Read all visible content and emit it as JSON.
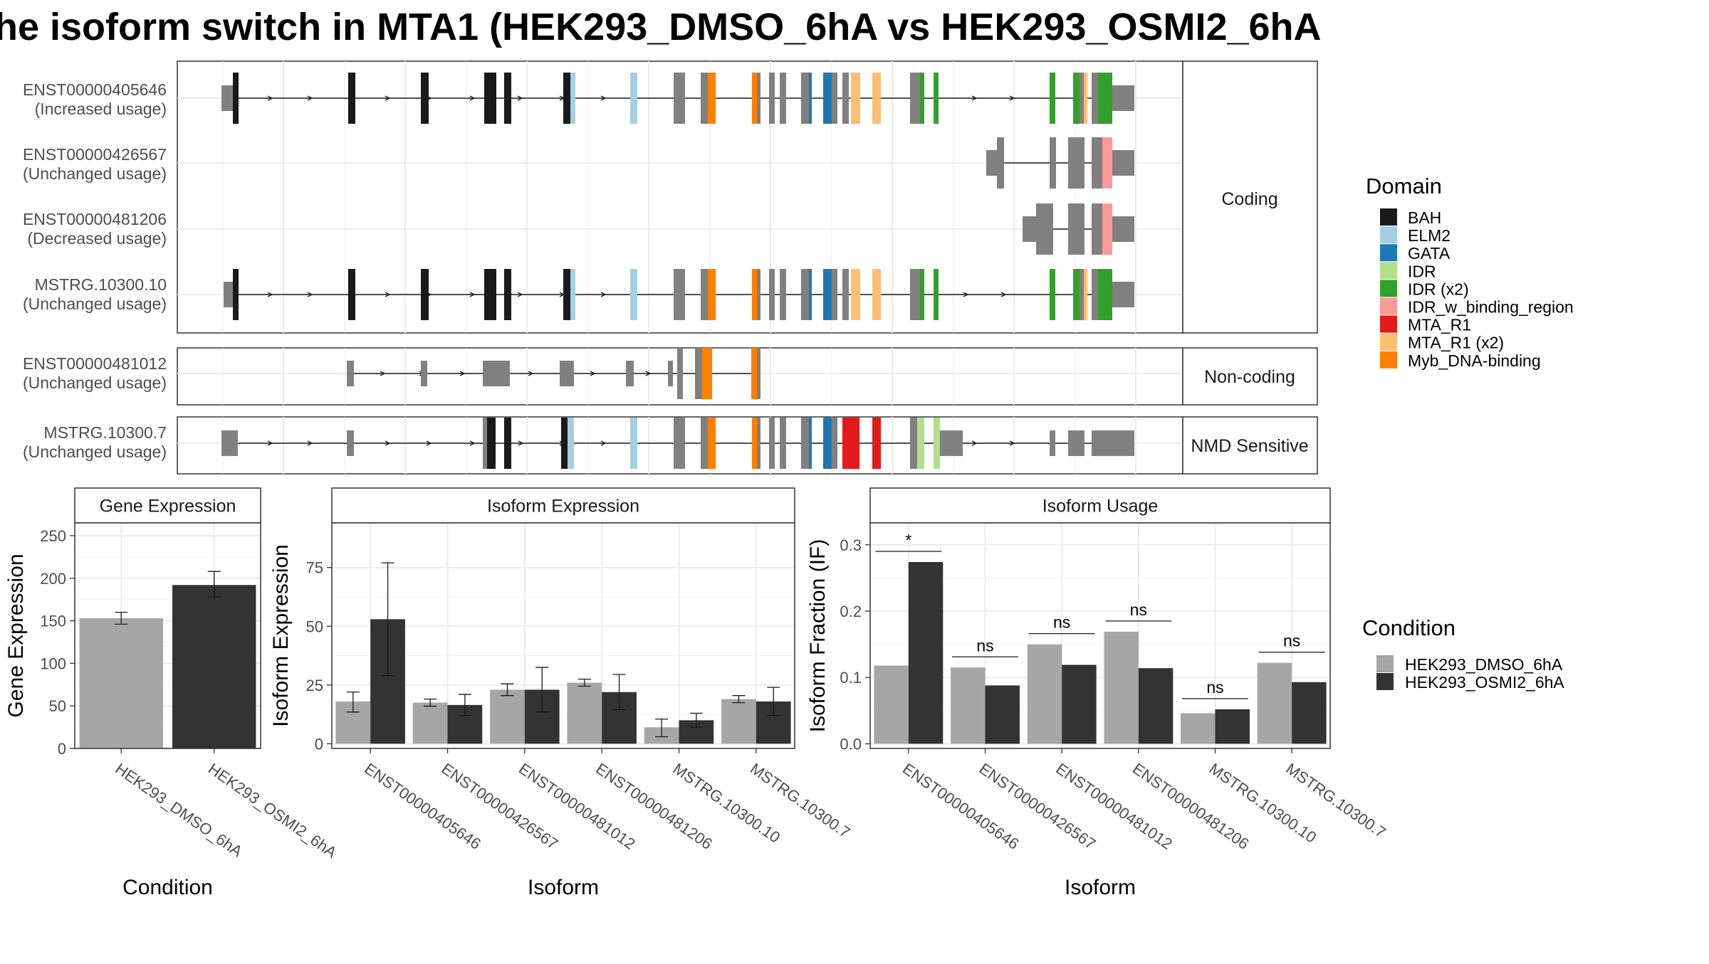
{
  "title": "he isoform switch in MTA1 (HEK293_DMSO_6hA vs HEK293_OSMI2_6hA",
  "colors": {
    "BAH": "#1a1a1a",
    "ELM2": "#a6cee3",
    "GATA": "#1f78b4",
    "IDR": "#b2df8a",
    "IDR (x2)": "#33a02c",
    "IDR_w_binding_region": "#fb9a99",
    "MTA_R1": "#e31a1c",
    "MTA_R1 (x2)": "#fdbf6f",
    "Myb_DNA-binding": "#ff7f00",
    "exon": "#808080",
    "DMSO": "#a6a6a6",
    "OSMI2": "#333333"
  },
  "structure": {
    "facets": [
      {
        "label": "Coding",
        "rows": [
          {
            "id": "ENST00000405646",
            "usage": "(Increased usage)"
          },
          {
            "id": "ENST00000426567",
            "usage": "(Unchanged usage)"
          },
          {
            "id": "ENST00000481206",
            "usage": "(Decreased usage)"
          },
          {
            "id": "MSTRG.10300.10",
            "usage": "(Unchanged usage)"
          }
        ]
      },
      {
        "label": "Non-coding",
        "rows": [
          {
            "id": "ENST00000481012",
            "usage": "(Unchanged usage)"
          }
        ]
      },
      {
        "label": "NMD Sensitive",
        "rows": [
          {
            "id": "MSTRG.10300.7",
            "usage": "(Unchanged usage)"
          }
        ]
      }
    ]
  },
  "legend_domain": {
    "title": "Domain",
    "items": [
      "BAH",
      "ELM2",
      "GATA",
      "IDR",
      "IDR (x2)",
      "IDR_w_binding_region",
      "MTA_R1",
      "MTA_R1 (x2)",
      "Myb_DNA-binding"
    ]
  },
  "legend_condition": {
    "title": "Condition",
    "items": [
      "HEK293_DMSO_6hA",
      "HEK293_OSMI2_6hA"
    ]
  },
  "chart_data": [
    {
      "type": "bar",
      "title": "Gene Expression",
      "xlabel": "Condition",
      "ylabel": "Gene Expression",
      "categories": [
        "HEK293_DMSO_6hA",
        "HEK293_OSMI2_6hA"
      ],
      "values": [
        153,
        192
      ],
      "errors": [
        [
          146,
          160
        ],
        [
          178,
          208
        ]
      ],
      "ylim": [
        0,
        265
      ],
      "yticks": [
        0,
        50,
        100,
        150,
        200,
        250
      ]
    },
    {
      "type": "bar",
      "title": "Isoform Expression",
      "xlabel": "Isoform",
      "ylabel": "Isoform Expression",
      "categories": [
        "ENST00000405646",
        "ENST00000426567",
        "ENST00000481012",
        "ENST00000481206",
        "MSTRG.10300.10",
        "MSTRG.10300.7"
      ],
      "series": [
        {
          "name": "HEK293_DMSO_6hA",
          "values": [
            18,
            17.5,
            23,
            26,
            7,
            19
          ],
          "errors": [
            [
              13.5,
              22
            ],
            [
              16,
              19
            ],
            [
              20.5,
              25.5
            ],
            [
              24.5,
              27.5
            ],
            [
              3,
              10.5
            ],
            [
              17.5,
              20.5
            ]
          ]
        },
        {
          "name": "HEK293_OSMI2_6hA",
          "values": [
            53,
            16.5,
            23,
            22,
            10,
            18
          ],
          "errors": [
            [
              29,
              77
            ],
            [
              12,
              21
            ],
            [
              13.5,
              32.5
            ],
            [
              14.5,
              29.5
            ],
            [
              7,
              13
            ],
            [
              12,
              24
            ]
          ]
        }
      ],
      "ylim": [
        -2,
        94
      ],
      "yticks": [
        0,
        25,
        50,
        75
      ]
    },
    {
      "type": "bar",
      "title": "Isoform Usage",
      "xlabel": "Isoform",
      "ylabel": "Isoform Fraction (IF)",
      "categories": [
        "ENST00000405646",
        "ENST00000426567",
        "ENST00000481012",
        "ENST00000481206",
        "MSTRG.10300.10",
        "MSTRG.10300.7"
      ],
      "series": [
        {
          "name": "HEK293_DMSO_6hA",
          "values": [
            0.118,
            0.115,
            0.15,
            0.169,
            0.046,
            0.122
          ]
        },
        {
          "name": "HEK293_OSMI2_6hA",
          "values": [
            0.274,
            0.088,
            0.119,
            0.114,
            0.052,
            0.093
          ]
        }
      ],
      "significance": [
        "*",
        "ns",
        "ns",
        "ns",
        "ns",
        "ns"
      ],
      "ylim": [
        -0.007,
        0.333
      ],
      "yticks": [
        0.0,
        0.1,
        0.2,
        0.3
      ],
      "ytick_labels": [
        "0.0",
        "0.1",
        "0.2",
        "0.3"
      ]
    }
  ]
}
